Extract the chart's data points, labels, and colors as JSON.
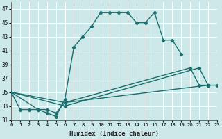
{
  "xlabel": "Humidex (Indice chaleur)",
  "ylabel": "",
  "background_color": "#cce8e8",
  "grid_color": "#ffffff",
  "line_color": "#1a6e6e",
  "xlim": [
    0,
    23
  ],
  "ylim": [
    31,
    48
  ],
  "xticks": [
    0,
    1,
    2,
    3,
    4,
    5,
    6,
    7,
    8,
    9,
    10,
    11,
    12,
    13,
    14,
    15,
    16,
    17,
    18,
    19,
    20,
    21,
    22,
    23
  ],
  "ytick_vals": [
    31,
    33,
    35,
    37,
    39,
    41,
    43,
    45,
    47
  ],
  "series": [
    {
      "x": [
        0,
        1,
        2,
        3,
        4,
        5,
        6,
        7,
        8,
        9,
        10,
        11,
        12,
        13,
        14,
        15,
        16,
        17,
        18,
        19
      ],
      "y": [
        35,
        32.5,
        32.5,
        32.5,
        32,
        31.5,
        34,
        41.5,
        43,
        44.5,
        46.5,
        46.5,
        46.5,
        46.5,
        45,
        45,
        46.5,
        42.5,
        42.5,
        40.5
      ]
    },
    {
      "x": [
        0,
        3,
        4,
        5,
        6,
        20,
        21,
        22,
        23
      ],
      "y": [
        35,
        32.5,
        32.5,
        32,
        33.5,
        38.5,
        36,
        36,
        36
      ]
    },
    {
      "x": [
        0,
        6,
        21,
        22
      ],
      "y": [
        35,
        33,
        38.5,
        36
      ]
    },
    {
      "x": [
        0,
        6,
        22
      ],
      "y": [
        35,
        33.5,
        36
      ]
    }
  ]
}
